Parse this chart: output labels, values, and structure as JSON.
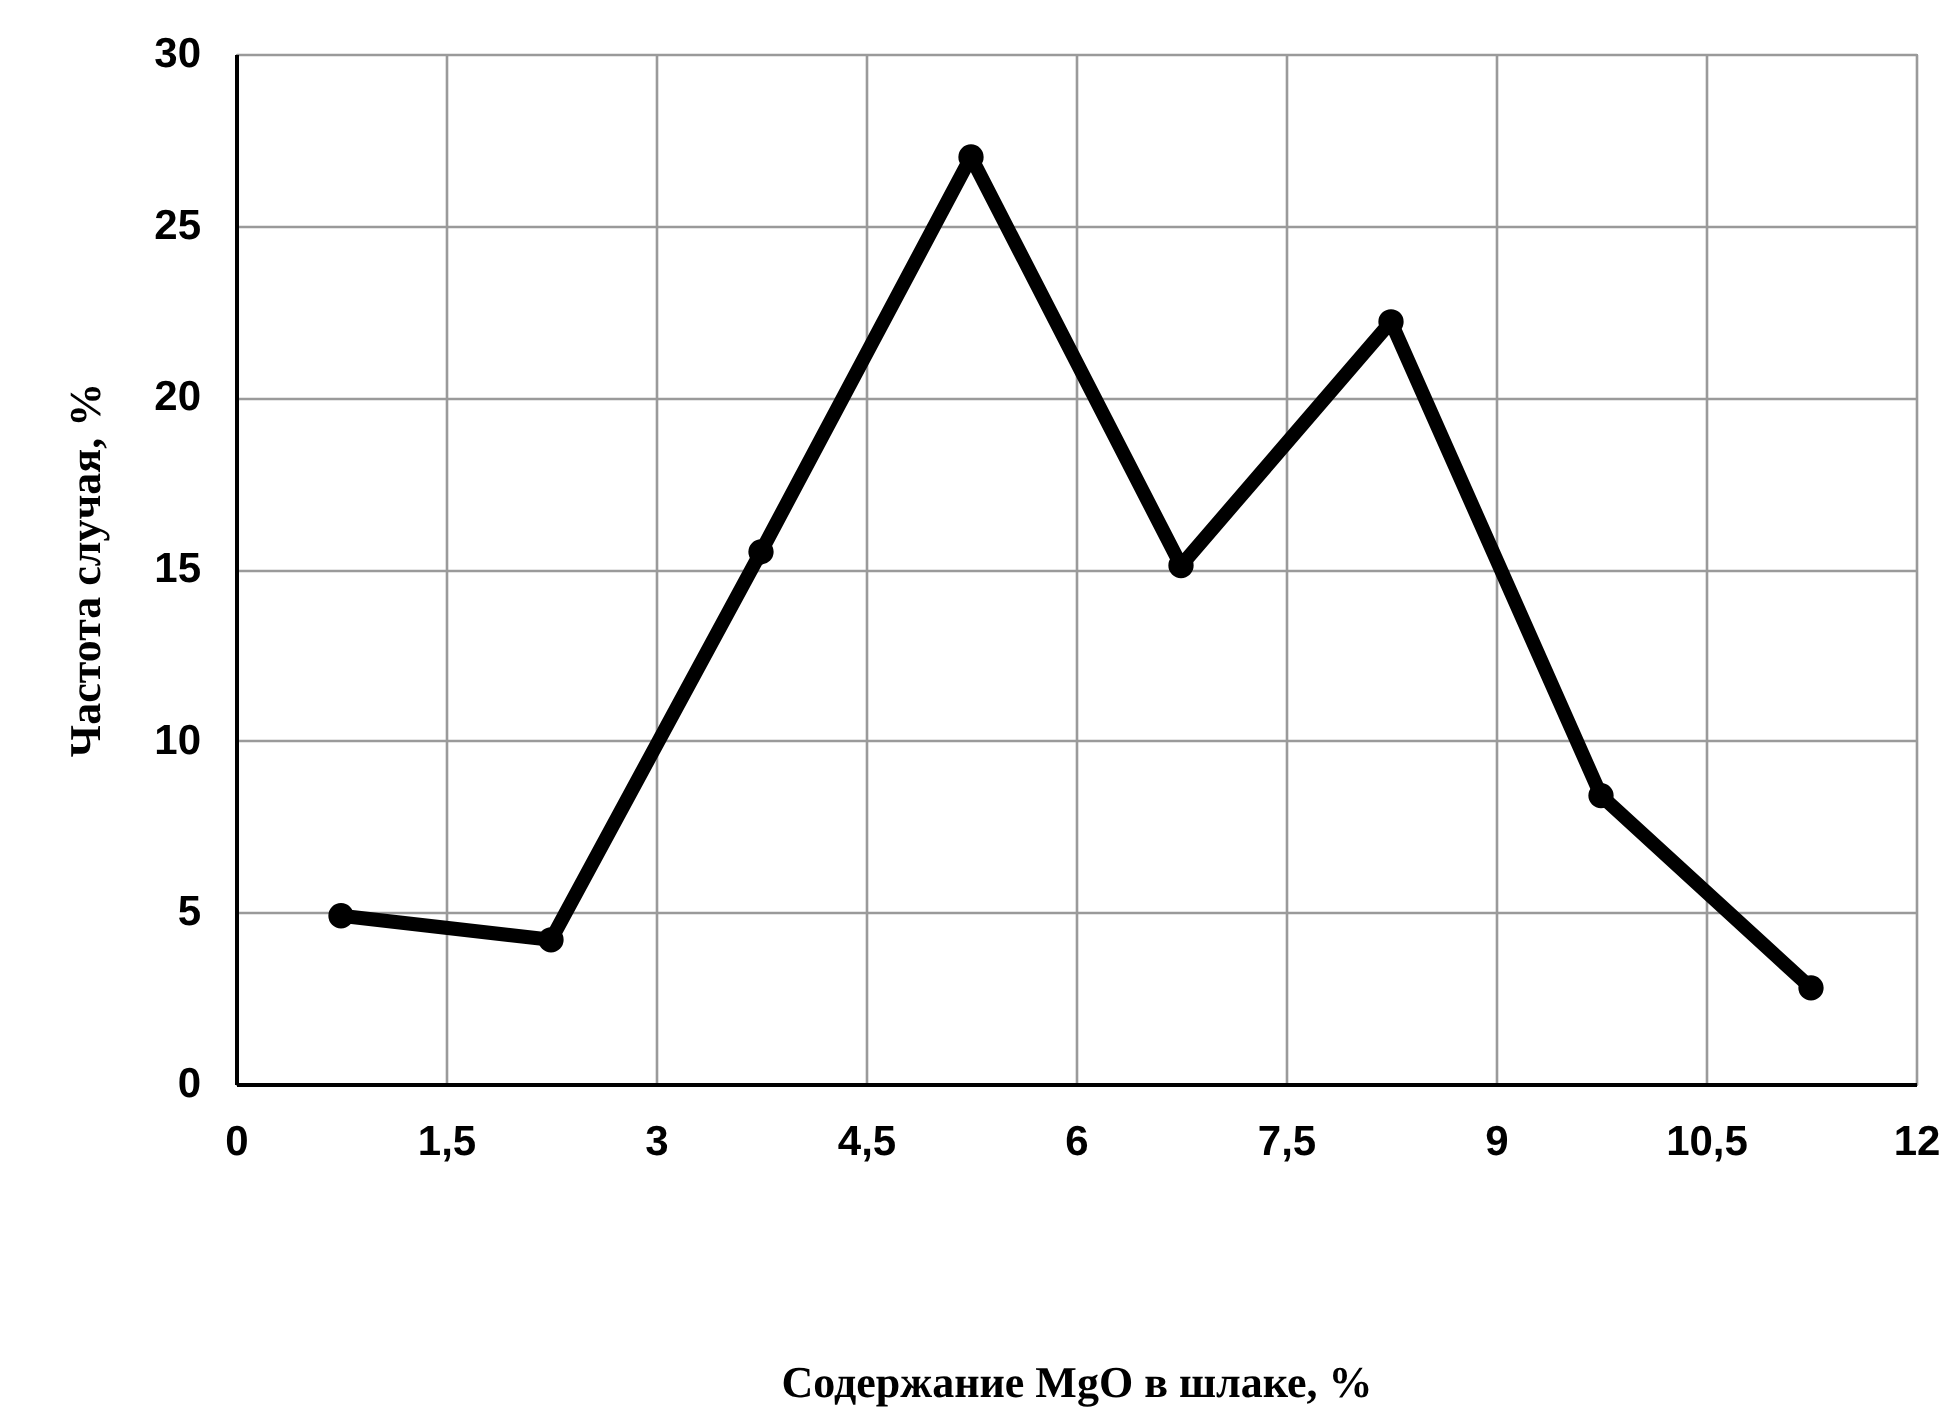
{
  "chart_data": {
    "type": "line",
    "xlabel": "Содержание MgO в шлаке, %",
    "ylabel": "Частота случая, %",
    "x": [
      0.75,
      2.25,
      3.75,
      5.25,
      6.75,
      8.25,
      9.75,
      11.25
    ],
    "series": [
      {
        "color": "#000000",
        "values": [
          4.9,
          4.2,
          15.5,
          27,
          15.1,
          22.2,
          8.4,
          2.8
        ]
      }
    ],
    "xlim": [
      0,
      12
    ],
    "xticks": [
      0,
      {
        "value": 1.5,
        "label": "1,5"
      },
      3,
      {
        "value": 4.5,
        "label": "4,5"
      },
      6,
      {
        "value": 7.5,
        "label": "7,5"
      },
      9,
      {
        "value": 10.5,
        "label": "10,5"
      },
      12
    ],
    "ylim": [
      0,
      30
    ],
    "yticks": [
      0,
      5,
      10,
      15,
      20,
      25,
      30
    ],
    "grid": true,
    "marker": "circle",
    "line_style": "solid"
  }
}
